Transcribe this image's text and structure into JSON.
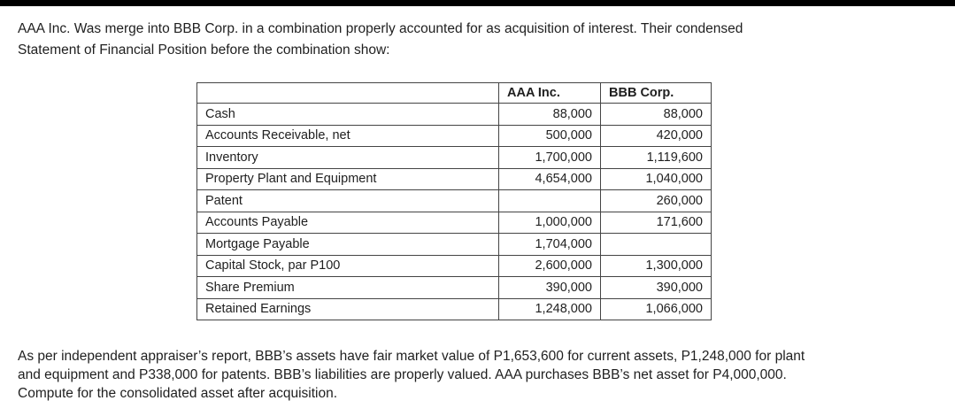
{
  "intro": {
    "line1": "AAA Inc. Was merge into BBB Corp. in a combination properly accounted for as acquisition of interest. Their condensed",
    "line2": "Statement of Financial Position before the combination show:"
  },
  "table": {
    "headers": [
      "",
      "AAA Inc.",
      "BBB Corp."
    ],
    "rows": [
      {
        "label": "Cash",
        "aaa": "88,000",
        "bbb": "88,000"
      },
      {
        "label": "Accounts Receivable, net",
        "aaa": "500,000",
        "bbb": "420,000"
      },
      {
        "label": "Inventory",
        "aaa": "1,700,000",
        "bbb": "1,119,600"
      },
      {
        "label": "Property Plant and Equipment",
        "aaa": "4,654,000",
        "bbb": "1,040,000"
      },
      {
        "label": "Patent",
        "aaa": "",
        "bbb": "260,000"
      },
      {
        "label": "Accounts Payable",
        "aaa": "1,000,000",
        "bbb": "171,600"
      },
      {
        "label": "Mortgage Payable",
        "aaa": "1,704,000",
        "bbb": ""
      },
      {
        "label": "Capital Stock, par P100",
        "aaa": "2,600,000",
        "bbb": "1,300,000"
      },
      {
        "label": "Share Premium",
        "aaa": "390,000",
        "bbb": "390,000"
      },
      {
        "label": "Retained Earnings",
        "aaa": "1,248,000",
        "bbb": "1,066,000"
      }
    ]
  },
  "outro": {
    "line1": "As per independent appraiser’s report, BBB’s assets have fair market value of P1,653,600 for current assets, P1,248,000 for plant",
    "line2": "and equipment and P338,000 for patents. BBB’s liabilities are properly valued. AAA purchases BBB’s net asset for P4,000,000.",
    "line3": "Compute for the consolidated asset after acquisition."
  }
}
